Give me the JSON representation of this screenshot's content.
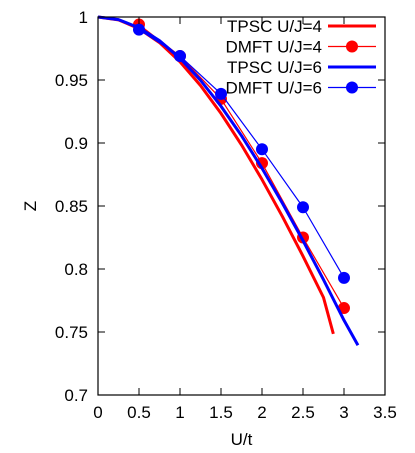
{
  "chart_data": {
    "type": "line",
    "xlabel": "U/t",
    "ylabel": "Z",
    "xlim": [
      0,
      3.5
    ],
    "ylim": [
      0.7,
      1.0
    ],
    "x_ticks": [
      "0",
      "0.5",
      "1",
      "1.5",
      "2",
      "2.5",
      "3",
      "3.5"
    ],
    "y_ticks": [
      "0.7",
      "0.75",
      "0.8",
      "0.85",
      "0.9",
      "0.95",
      "1"
    ],
    "grid": false,
    "legend_position": "top-right",
    "series": [
      {
        "name": "TPSC U/J=4",
        "style": "line",
        "color": "#ff0000",
        "x": [
          0,
          0.25,
          0.5,
          0.75,
          1.0,
          1.25,
          1.5,
          1.75,
          2.0,
          2.25,
          2.5,
          2.75,
          2.87
        ],
        "y": [
          1.0,
          0.9977,
          0.9908,
          0.9797,
          0.9645,
          0.9456,
          0.9235,
          0.8985,
          0.871,
          0.8415,
          0.8102,
          0.7774,
          0.7485
        ]
      },
      {
        "name": "DMFT U/J=4",
        "style": "linespoints",
        "color": "#ff0000",
        "x": [
          0.5,
          1.0,
          1.5,
          2.0,
          2.5,
          3.0
        ],
        "y": [
          0.994,
          0.969,
          0.935,
          0.884,
          0.825,
          0.769
        ]
      },
      {
        "name": "TPSC U/J=6",
        "style": "line",
        "color": "#0000ff",
        "x": [
          0,
          0.25,
          0.5,
          0.75,
          1.0,
          1.25,
          1.5,
          1.75,
          2.0,
          2.25,
          2.5,
          2.75,
          3.0,
          3.17
        ],
        "y": [
          1.0,
          0.9979,
          0.9915,
          0.9812,
          0.9673,
          0.9498,
          0.9292,
          0.9058,
          0.88,
          0.8521,
          0.8225,
          0.7915,
          0.7593,
          0.7395
        ]
      },
      {
        "name": "DMFT U/J=6",
        "style": "linespoints",
        "color": "#0000ff",
        "x": [
          0.5,
          1.0,
          1.5,
          2.0,
          2.5,
          3.0
        ],
        "y": [
          0.99,
          0.969,
          0.939,
          0.895,
          0.849,
          0.793
        ]
      }
    ]
  }
}
